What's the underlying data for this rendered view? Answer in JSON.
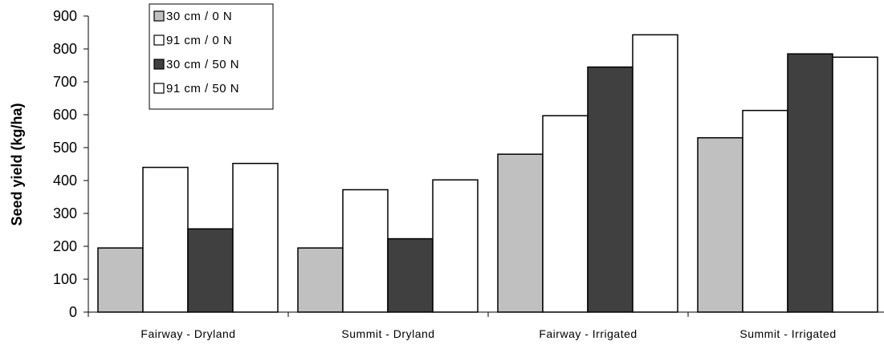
{
  "chart_data": {
    "type": "bar",
    "categories": [
      "Fairway - Dryland",
      "Summit - Dryland",
      "Fairway - Irrigated",
      "Summit - Irrigated"
    ],
    "series": [
      {
        "name": "30 cm / 0 N",
        "color": "#c0c0c0",
        "values": [
          195,
          195,
          480,
          530
        ]
      },
      {
        "name": "91 cm / 0 N",
        "color": "#ffffff",
        "values": [
          440,
          372,
          597,
          613
        ]
      },
      {
        "name": "30 cm / 50 N",
        "color": "#404040",
        "values": [
          253,
          223,
          745,
          785
        ]
      },
      {
        "name": "91 cm / 50 N",
        "color": "#ffffff",
        "values": [
          452,
          402,
          843,
          775
        ]
      }
    ],
    "ylabel": "Seed yield (kg/ha)",
    "ylim": [
      0,
      900
    ],
    "yticks": [
      0,
      100,
      200,
      300,
      400,
      500,
      600,
      700,
      800,
      900
    ],
    "grid": false,
    "legend_position": "top-left"
  }
}
